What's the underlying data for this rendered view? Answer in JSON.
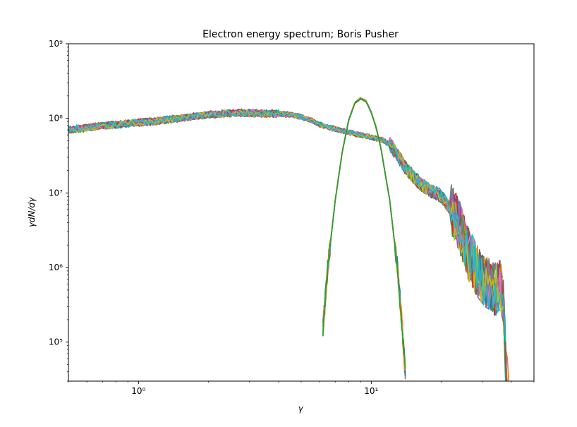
{
  "chart_data": {
    "type": "line",
    "title": "Electron energy spectrum; Boris Pusher",
    "xlabel": "γ",
    "ylabel": "γdN/dγ",
    "xscale": "log",
    "yscale": "log",
    "xlim": [
      0.5,
      50
    ],
    "ylim": [
      30000,
      1000000000
    ],
    "x_major_ticks": [
      1,
      10
    ],
    "x_tick_labels": [
      "10⁰",
      "10¹"
    ],
    "y_major_ticks": [
      100000,
      1000000,
      10000000,
      100000000,
      1000000000
    ],
    "y_tick_labels": [
      "10⁵",
      "10⁶",
      "10⁷",
      "10⁸",
      "10⁹"
    ],
    "grid": false,
    "legend": "none",
    "colors": [
      "#1f77b4",
      "#ff7f0e",
      "#2ca02c",
      "#d62728",
      "#9467bd",
      "#8c564b",
      "#e377c2",
      "#7f7f7f",
      "#bcbd22",
      "#17becf"
    ],
    "series": [
      {
        "description_key": "broad",
        "x": [
          0.5,
          0.6,
          0.7,
          0.8,
          1.0,
          1.2,
          1.5,
          2.0,
          2.5,
          3.0,
          3.5,
          4.0,
          4.5,
          5.0,
          5.5,
          6.0,
          7.0,
          8.0,
          9.0,
          10.0,
          11.0,
          12.0,
          13.0,
          14.0,
          15.0,
          16.0,
          17.0,
          18.0,
          19.0,
          20.0,
          22.0,
          24.0,
          26.0,
          28.0,
          30.0,
          32.0,
          34.0,
          36.0,
          37.0,
          38.0
        ],
        "y": [
          70000000,
          75000000,
          80000000,
          82000000,
          88000000,
          92000000,
          100000000,
          112000000,
          118000000,
          118000000,
          116000000,
          115000000,
          112000000,
          105000000,
          95000000,
          82000000,
          72000000,
          65000000,
          60000000,
          56000000,
          52000000,
          45000000,
          32000000,
          22000000,
          17000000,
          14000000,
          12000000,
          10500000,
          10000000,
          9000000,
          6000000,
          3500000,
          1600000,
          1000000,
          700000,
          600000,
          500000,
          600000,
          300000,
          30000
        ]
      },
      {
        "description_key": "peak",
        "x": [
          6.2,
          6.5,
          7.0,
          7.5,
          8.0,
          8.5,
          9.0,
          9.5,
          10.0,
          10.5,
          11.0,
          12.0,
          13.0,
          13.5,
          14.0
        ],
        "y": [
          150000,
          1000000,
          8000000,
          35000000,
          95000000,
          160000000,
          185000000,
          170000000,
          120000000,
          75000000,
          40000000,
          8000000,
          900000,
          200000,
          40000
        ]
      }
    ]
  }
}
